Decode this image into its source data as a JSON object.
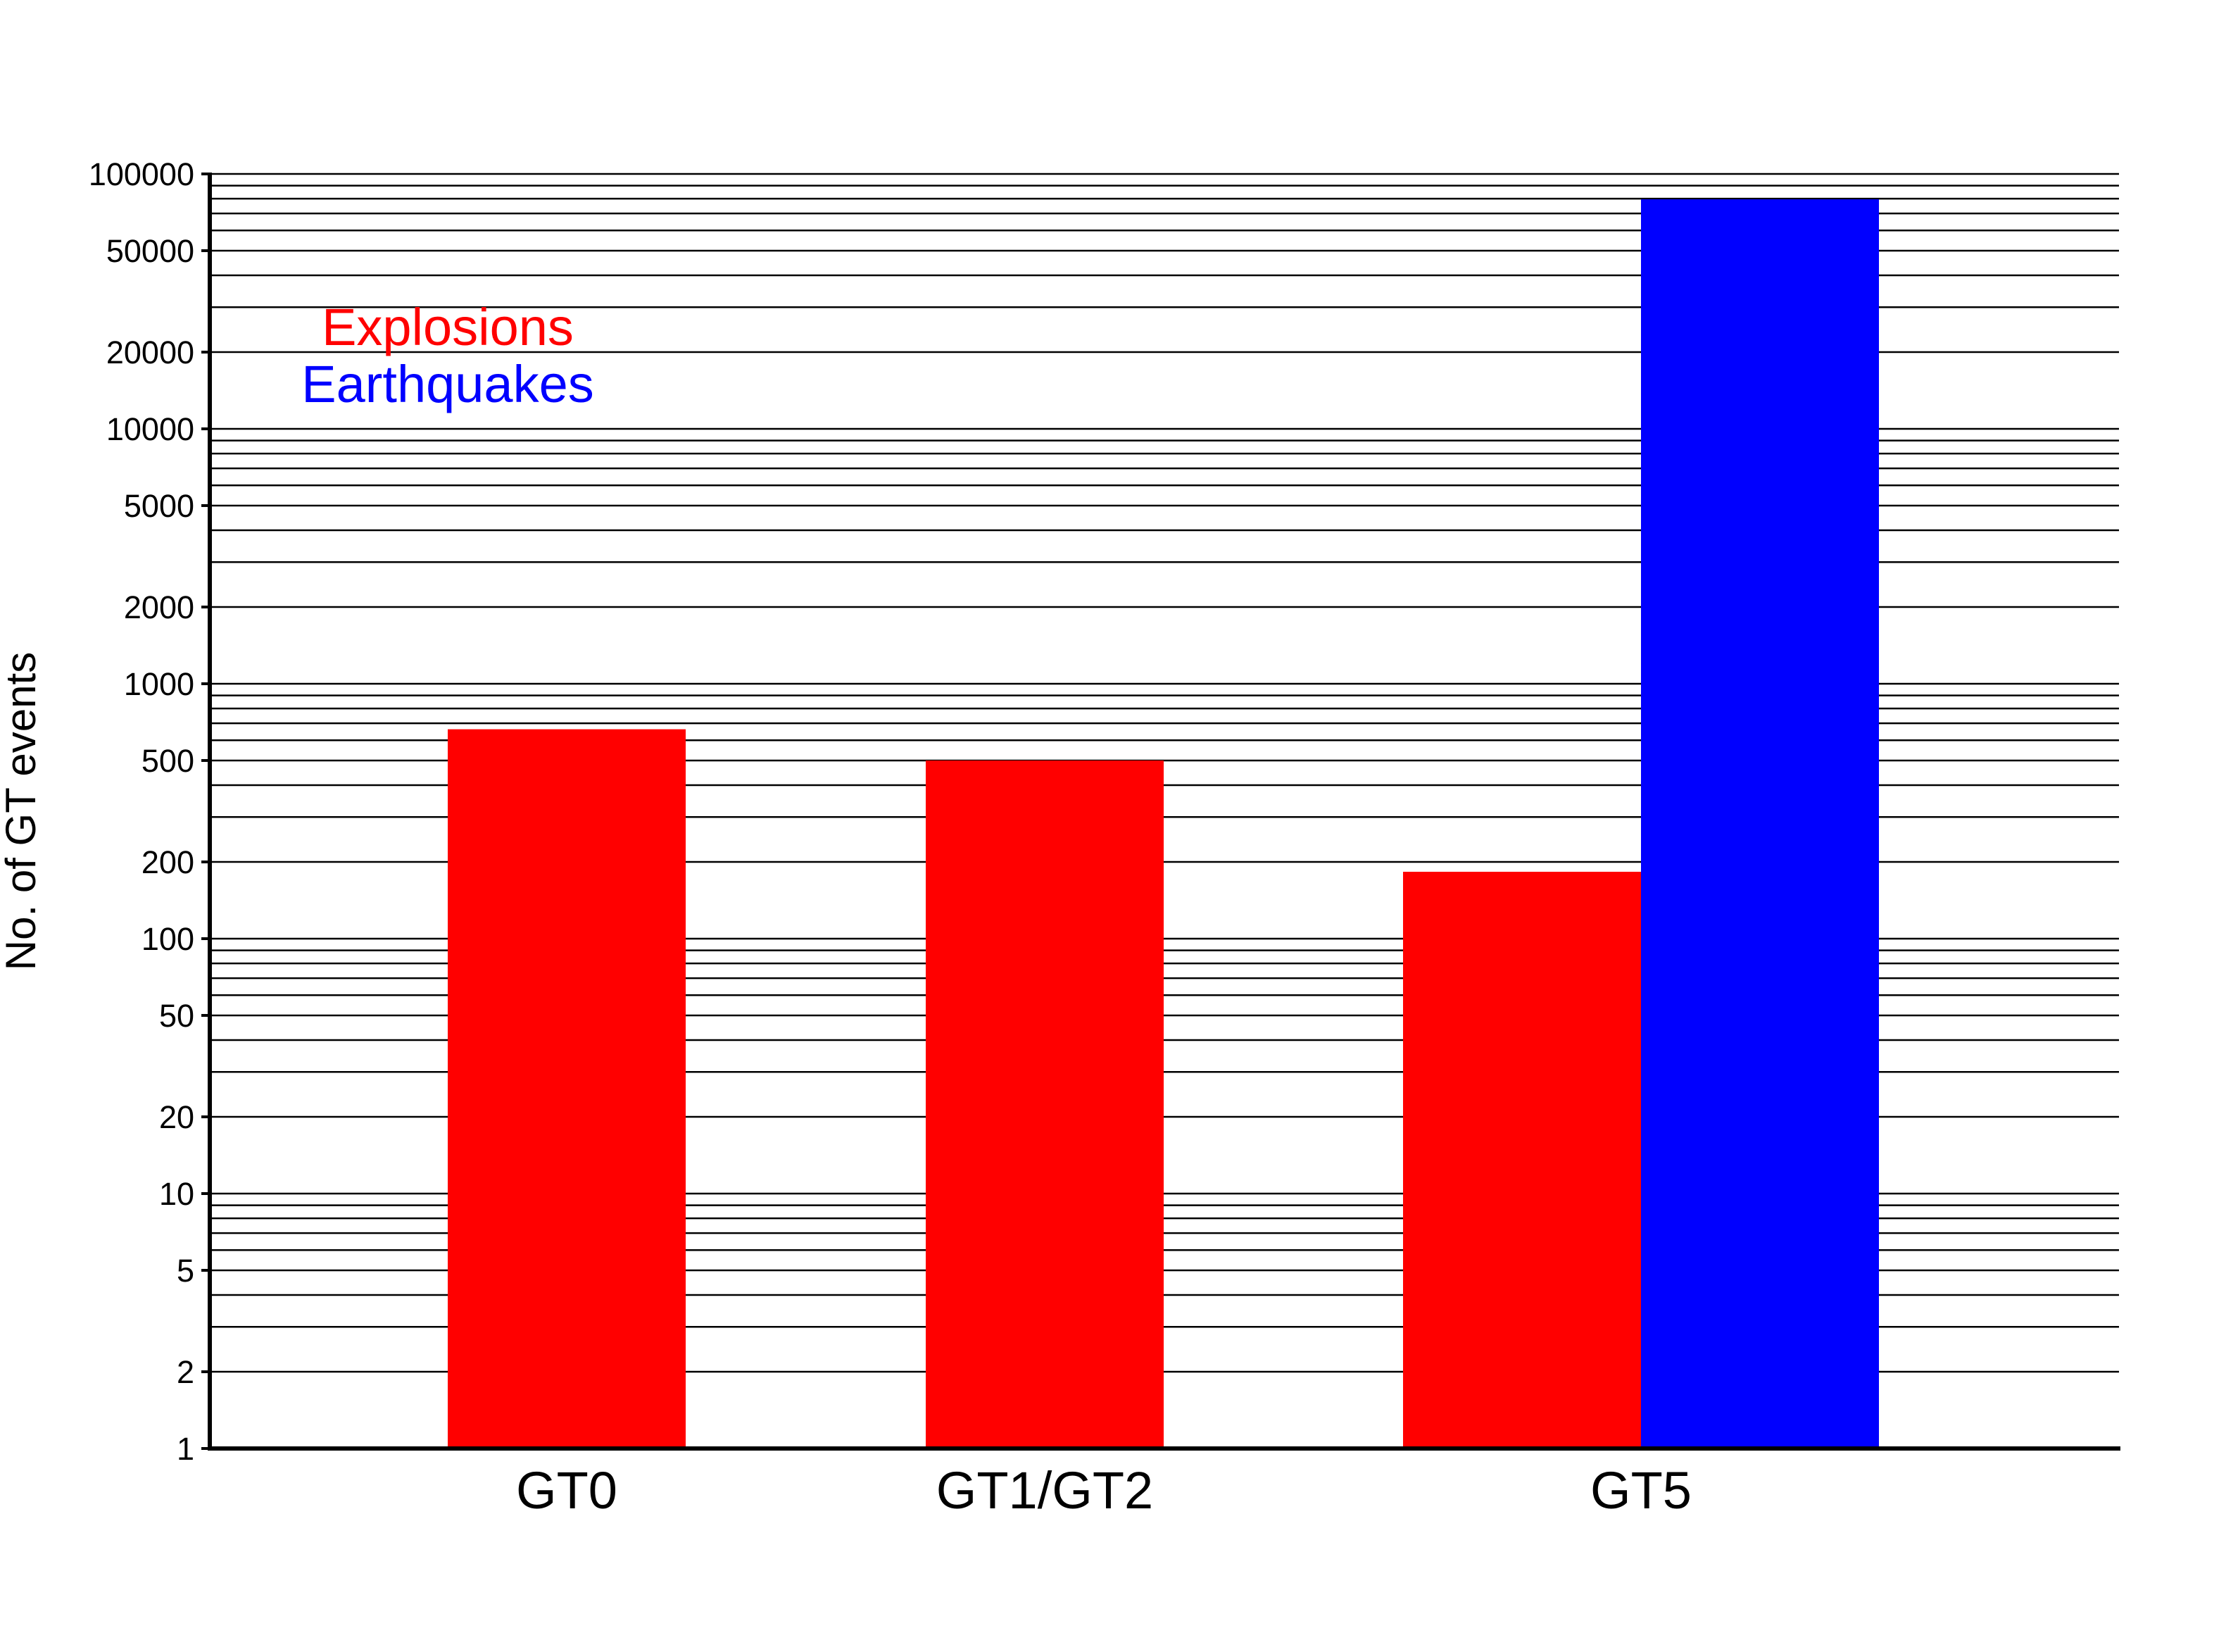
{
  "chart_data": {
    "type": "bar",
    "title": "",
    "xlabel": "",
    "ylabel": "No. of GT events",
    "yscale": "log",
    "ylim": [
      1,
      100000
    ],
    "grid": true,
    "yticks": [
      1,
      2,
      5,
      10,
      20,
      50,
      100,
      200,
      500,
      1000,
      2000,
      5000,
      10000,
      20000,
      50000,
      100000
    ],
    "ytick_labels": [
      "1",
      "2",
      "5",
      "10",
      "20",
      "50",
      "100",
      "200",
      "500",
      "1000",
      "2000",
      "5000",
      "10000",
      "20000",
      "50000",
      "100000"
    ],
    "categories": [
      "GT0",
      "GT1/GT2",
      "GT5"
    ],
    "series": [
      {
        "name": "Explosions",
        "color": "#ff0000",
        "values": [
          663,
          500,
          183
        ]
      },
      {
        "name": "Earthquakes",
        "color": "#0000ff",
        "values": [
          null,
          null,
          79500
        ]
      }
    ],
    "legend": {
      "placement": "top-left"
    }
  }
}
